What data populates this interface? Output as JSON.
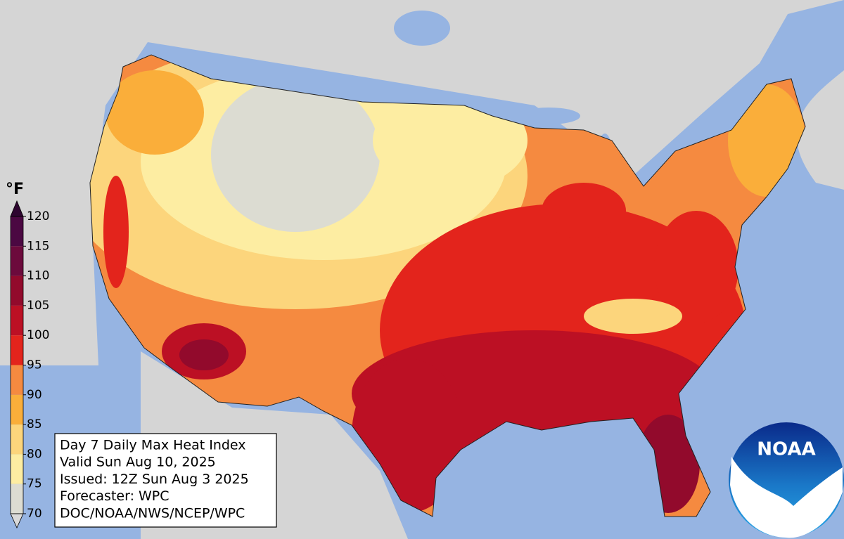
{
  "legend": {
    "unit": "°F",
    "ticks": [
      70,
      75,
      80,
      85,
      90,
      95,
      100,
      105,
      110,
      115,
      120
    ],
    "colors": [
      "#dcdcd2",
      "#fdeda2",
      "#fcd57c",
      "#faae3a",
      "#f58a40",
      "#e3241c",
      "#bc1024",
      "#920a2c",
      "#6c0a3c",
      "#4b0842"
    ],
    "under_color": "#d9d9d9",
    "over_color": "#2e0530"
  },
  "info": {
    "lines": [
      "Day 7 Daily Max Heat Index",
      "Valid Sun Aug 10, 2025",
      "Issued: 12Z Sun Aug 3 2025",
      "Forecaster: WPC",
      "DOC/NOAA/NWS/NCEP/WPC"
    ]
  },
  "logo": {
    "text": "NOAA"
  }
}
